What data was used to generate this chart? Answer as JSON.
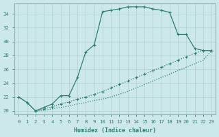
{
  "xlabel": "Humidex (Indice chaleur)",
  "xlim": [
    -0.5,
    23.5
  ],
  "ylim": [
    19.5,
    35.5
  ],
  "xticks": [
    0,
    1,
    2,
    3,
    4,
    5,
    6,
    7,
    8,
    9,
    10,
    11,
    12,
    13,
    14,
    15,
    16,
    17,
    18,
    19,
    20,
    21,
    22,
    23
  ],
  "yticks": [
    20,
    22,
    24,
    26,
    28,
    30,
    32,
    34
  ],
  "bg_color": "#cce8ea",
  "line_color": "#2e7d72",
  "grid_color": "#b0d0d4",
  "line1_x": [
    0,
    1,
    2,
    3,
    4,
    5,
    6,
    7,
    8,
    9,
    10,
    11,
    12,
    13,
    14,
    15,
    16,
    17,
    18,
    19,
    20,
    21,
    22,
    23
  ],
  "line1_y": [
    22.0,
    21.2,
    20.0,
    20.5,
    21.0,
    22.2,
    22.2,
    24.8,
    28.5,
    29.5,
    34.3,
    34.5,
    34.7,
    35.0,
    35.0,
    35.0,
    34.7,
    34.5,
    34.2,
    31.0,
    31.0,
    29.0,
    28.7,
    28.7
  ],
  "line2_x": [
    0,
    1,
    2,
    3,
    4,
    5,
    6,
    7,
    8,
    9,
    10,
    11,
    12,
    13,
    14,
    15,
    16,
    17,
    18,
    19,
    20,
    21,
    22,
    23
  ],
  "line2_y": [
    22.0,
    21.2,
    20.0,
    20.3,
    20.6,
    21.0,
    21.3,
    21.7,
    22.0,
    22.4,
    22.8,
    23.3,
    23.8,
    24.3,
    24.8,
    25.3,
    25.8,
    26.3,
    26.8,
    27.3,
    27.8,
    28.3,
    28.7,
    28.7
  ],
  "line3_x": [
    0,
    1,
    2,
    3,
    4,
    5,
    6,
    7,
    8,
    9,
    10,
    11,
    12,
    13,
    14,
    15,
    16,
    17,
    18,
    19,
    20,
    21,
    22,
    23
  ],
  "line3_y": [
    22.0,
    21.2,
    20.0,
    20.1,
    20.3,
    20.5,
    20.7,
    21.0,
    21.2,
    21.5,
    21.7,
    22.0,
    22.4,
    22.8,
    23.3,
    23.8,
    24.3,
    24.8,
    25.3,
    25.8,
    26.3,
    26.8,
    27.3,
    28.7
  ],
  "markersize": 2.0,
  "linewidth": 0.9
}
